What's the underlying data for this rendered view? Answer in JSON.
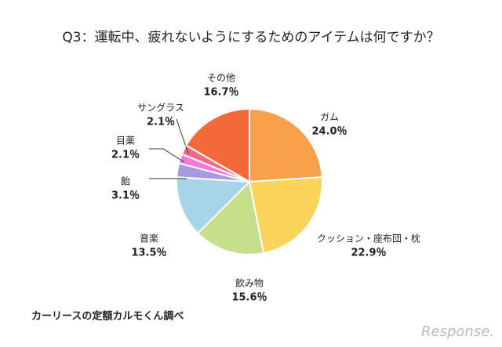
{
  "chart_data": {
    "type": "pie",
    "title": "Q3：運転中、疲れないようにするためのアイテムは何ですか？",
    "categories": [
      "ガム",
      "クッション・座布団・枕",
      "飲み物",
      "音楽",
      "飴",
      "目薬",
      "サングラス",
      "その他"
    ],
    "values": [
      24.0,
      22.9,
      15.6,
      13.5,
      3.1,
      2.1,
      2.1,
      16.7
    ],
    "value_labels": [
      "24.0％",
      "22.9％",
      "15.6％",
      "13.5％",
      "3.1％",
      "2.1％",
      "2.1％",
      "16.7％"
    ],
    "colors": [
      "#f9a04a",
      "#f9d35a",
      "#c5df8a",
      "#a8d4e8",
      "#a89ae0",
      "#f27ad8",
      "#f06a8a",
      "#f26a3a"
    ],
    "source": "カーリースの定額カルモくん調べ",
    "logo": "Response."
  }
}
